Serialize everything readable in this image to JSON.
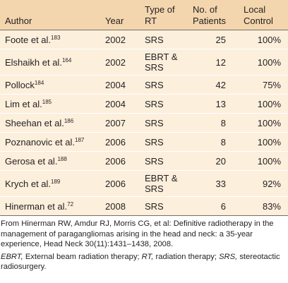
{
  "table": {
    "headers": {
      "author": "Author",
      "year": "Year",
      "type_line1": "Type of",
      "type_line2": "RT",
      "patients_line1": "No. of",
      "patients_line2": "Patients",
      "control_line1": "Local",
      "control_line2": "Control"
    },
    "rows": [
      {
        "author": "Foote et al.",
        "ref": "183",
        "year": "2002",
        "type": "SRS",
        "type2": "",
        "patients": "25",
        "control": "100%"
      },
      {
        "author": "Elshaikh et al.",
        "ref": "164",
        "year": "2002",
        "type": "EBRT &",
        "type2": "SRS",
        "patients": "12",
        "control": "100%"
      },
      {
        "author": "Pollock",
        "ref": "184",
        "year": "2004",
        "type": "SRS",
        "type2": "",
        "patients": "42",
        "control": "75%"
      },
      {
        "author": "Lim et al.",
        "ref": "185",
        "year": "2004",
        "type": "SRS",
        "type2": "",
        "patients": "13",
        "control": "100%"
      },
      {
        "author": "Sheehan et al.",
        "ref": "186",
        "year": "2007",
        "type": "SRS",
        "type2": "",
        "patients": "8",
        "control": "100%"
      },
      {
        "author": "Poznanovic et al.",
        "ref": "187",
        "year": "2006",
        "type": "SRS",
        "type2": "",
        "patients": "8",
        "control": "100%"
      },
      {
        "author": "Gerosa et al.",
        "ref": "188",
        "year": "2006",
        "type": "SRS",
        "type2": "",
        "patients": "20",
        "control": "100%"
      },
      {
        "author": "Krych et al.",
        "ref": "189",
        "year": "2006",
        "type": "EBRT &",
        "type2": "SRS",
        "patients": "33",
        "control": "92%"
      },
      {
        "author": "Hinerman et al.",
        "ref": "72",
        "year": "2008",
        "type": "SRS",
        "type2": "",
        "patients": "6",
        "control": "83%"
      }
    ]
  },
  "footnote": {
    "source": "From Hinerman RW, Amdur RJ, Morris CG, et al: Definitive radiotherapy in the management of paragangliomas arising in the head and neck: a 35-year experience, Head Neck 30(11):1431–1438, 2008.",
    "abbreviations": [
      {
        "abbr": "EBRT,",
        "text": " External beam radiation therapy; "
      },
      {
        "abbr": "RT,",
        "text": " radiation therapy; "
      },
      {
        "abbr": "SRS,",
        "text": " stereotactic radiosurgery."
      }
    ]
  },
  "colors": {
    "header_bg": "#f3d6ae",
    "row_bg": "#fcefdc",
    "text": "#231f20"
  }
}
